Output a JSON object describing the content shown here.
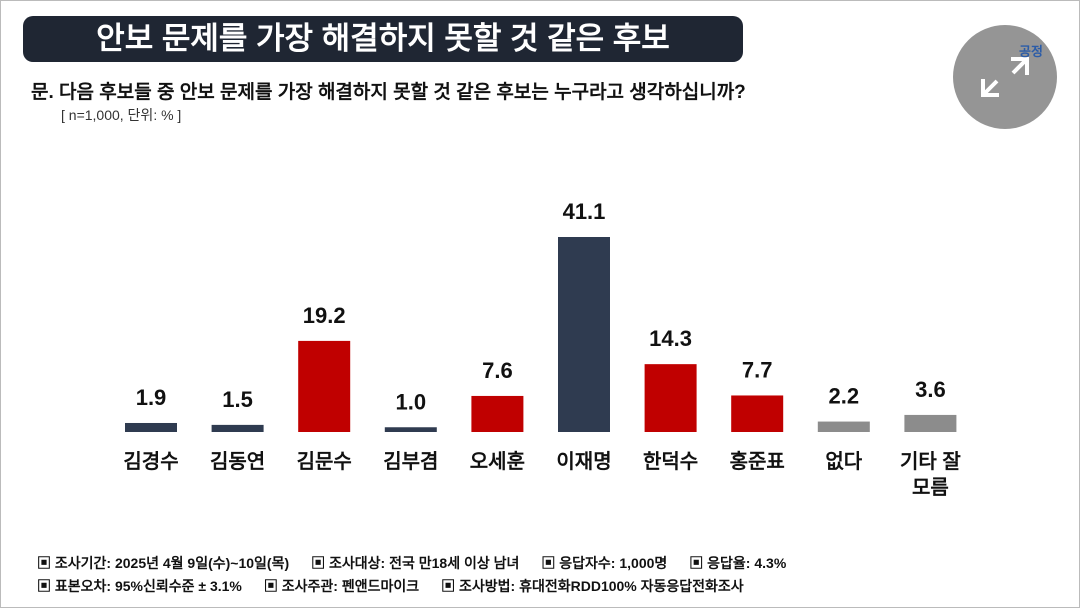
{
  "chart_data": {
    "type": "bar",
    "title": "안보 문제를 가장 해결하지 못할 것 같은 후보",
    "subtitle": "문. 다음 후보들 중 안보 문제를 가장 해결하지 못할 것 같은 후보는 누구라고 생각하십니까?",
    "note": "[ n=1,000, 단위: % ]",
    "categories": [
      "김경수",
      "김동연",
      "김문수",
      "김부겸",
      "오세훈",
      "이재명",
      "한덕수",
      "홍준표",
      "없다",
      "기타 잘모름"
    ],
    "values": [
      1.9,
      1.5,
      19.2,
      1.0,
      7.6,
      41.1,
      14.3,
      7.7,
      2.2,
      3.6
    ],
    "value_labels": [
      "1.9",
      "1.5",
      "19.2",
      "1.0",
      "7.6",
      "41.1",
      "14.3",
      "7.7",
      "2.2",
      "3.6"
    ],
    "colors": [
      "#2f3b50",
      "#2f3b50",
      "#c00000",
      "#2f3b50",
      "#c00000",
      "#2f3b50",
      "#c00000",
      "#c00000",
      "#8c8c8c",
      "#8c8c8c"
    ],
    "footnotes": [
      [
        "조사기간: 2025년 4월 9일(수)~10일(목)",
        "조사대상: 전국 만18세 이상 남녀",
        "응답자수: 1,000명",
        "응답율: 4.3%"
      ],
      [
        "표본오차: 95%신뢰수준 ± 3.1%",
        "조사주관: 펜앤드마이크",
        "조사방법: 휴대전화RDD100% 자동응답전화조사"
      ]
    ]
  },
  "logo_text": "공정"
}
